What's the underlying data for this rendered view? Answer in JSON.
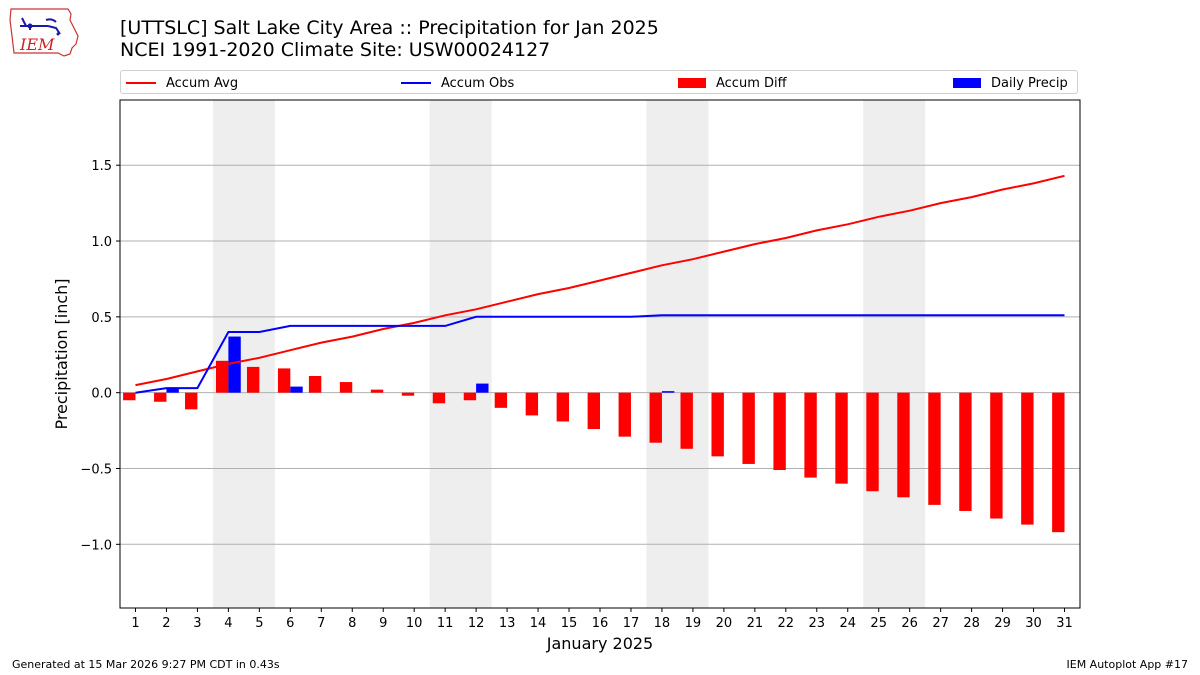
{
  "header": {
    "title_line1": "[UTTSLC] Salt Lake City Area :: Precipitation for Jan 2025",
    "title_line2": "NCEI 1991-2020 Climate Site: USW00024127",
    "logo_text": "IEM"
  },
  "legend": {
    "accum_avg": "Accum Avg",
    "accum_obs": "Accum Obs",
    "accum_diff": "Accum Diff",
    "daily_precip": "Daily Precip"
  },
  "footer": {
    "left": "Generated at 15 Mar 2026 9:27 PM CDT in 0.43s",
    "right": "IEM Autoplot App #17"
  },
  "colors": {
    "accum_avg": "#ff0000",
    "accum_obs": "#0000ff",
    "accum_diff": "#ff0000",
    "daily_precip": "#0000ff",
    "weekend_shade": "#eeeeee",
    "grid": "#b0b0b0"
  },
  "chart_data": {
    "type": "bar",
    "xlabel": "January 2025",
    "ylabel": "Precipitation [inch]",
    "xlim": [
      0.5,
      31.5
    ],
    "ylim": [
      -1.42,
      1.93
    ],
    "yticks": [
      -1.0,
      -0.5,
      0.0,
      0.5,
      1.0,
      1.5
    ],
    "ytick_labels": [
      "−1.0",
      "−0.5",
      "0.0",
      "0.5",
      "1.0",
      "1.5"
    ],
    "grid": "horizontal",
    "legend_position": "top",
    "x": [
      1,
      2,
      3,
      4,
      5,
      6,
      7,
      8,
      9,
      10,
      11,
      12,
      13,
      14,
      15,
      16,
      17,
      18,
      19,
      20,
      21,
      22,
      23,
      24,
      25,
      26,
      27,
      28,
      29,
      30,
      31
    ],
    "shaded_days": [
      [
        4,
        5
      ],
      [
        11,
        12
      ],
      [
        18,
        19
      ],
      [
        25,
        26
      ]
    ],
    "series": [
      {
        "name": "Accum Avg",
        "kind": "line",
        "values": [
          0.05,
          0.09,
          0.14,
          0.19,
          0.23,
          0.28,
          0.33,
          0.37,
          0.42,
          0.46,
          0.51,
          0.55,
          0.6,
          0.65,
          0.69,
          0.74,
          0.79,
          0.84,
          0.88,
          0.93,
          0.98,
          1.02,
          1.07,
          1.11,
          1.16,
          1.2,
          1.25,
          1.29,
          1.34,
          1.38,
          1.43
        ]
      },
      {
        "name": "Accum Obs",
        "kind": "line",
        "values": [
          0.0,
          0.03,
          0.03,
          0.4,
          0.4,
          0.44,
          0.44,
          0.44,
          0.44,
          0.44,
          0.44,
          0.5,
          0.5,
          0.5,
          0.5,
          0.5,
          0.5,
          0.51,
          0.51,
          0.51,
          0.51,
          0.51,
          0.51,
          0.51,
          0.51,
          0.51,
          0.51,
          0.51,
          0.51,
          0.51,
          0.51
        ]
      },
      {
        "name": "Accum Diff",
        "kind": "bar",
        "values": [
          -0.05,
          -0.06,
          -0.11,
          0.21,
          0.17,
          0.16,
          0.11,
          0.07,
          0.02,
          -0.02,
          -0.07,
          -0.05,
          -0.1,
          -0.15,
          -0.19,
          -0.24,
          -0.29,
          -0.33,
          -0.37,
          -0.42,
          -0.47,
          -0.51,
          -0.56,
          -0.6,
          -0.65,
          -0.69,
          -0.74,
          -0.78,
          -0.83,
          -0.87,
          -0.92
        ]
      },
      {
        "name": "Daily Precip",
        "kind": "bar",
        "values": [
          0.0,
          0.03,
          0.0,
          0.37,
          0.0,
          0.04,
          0,
          0,
          0,
          0,
          0,
          0.06,
          0,
          0,
          0,
          0,
          0,
          0.01,
          0,
          0,
          0,
          0,
          0,
          0,
          0,
          0,
          0,
          0,
          0,
          0,
          0
        ]
      }
    ]
  }
}
